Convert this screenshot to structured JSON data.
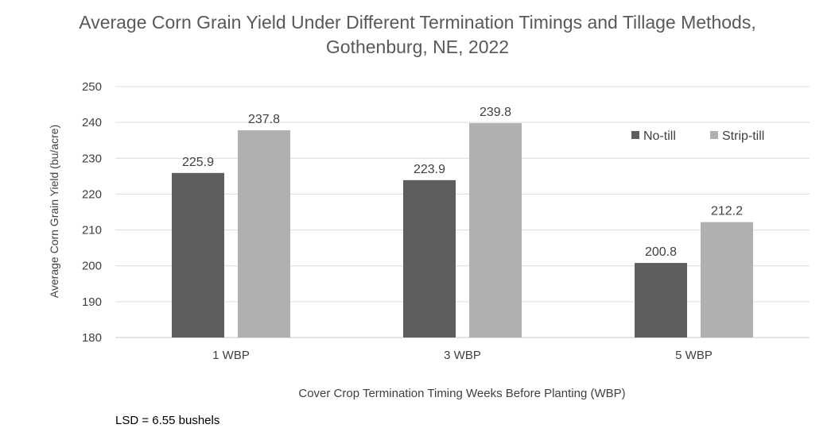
{
  "chart_data": {
    "type": "bar",
    "title_lines": [
      "Average Corn Grain Yield Under Different Termination Timings and Tillage Methods,",
      "Gothenburg, NE, 2022"
    ],
    "xlabel": "Cover Crop Termination Timing Weeks Before Planting (WBP)",
    "ylabel": "Average Corn Grain Yield (bu/acre)",
    "ylim": [
      180,
      250
    ],
    "yticks": [
      180,
      190,
      200,
      210,
      220,
      230,
      240,
      250
    ],
    "categories": [
      "1 WBP",
      "3 WBP",
      "5 WBP"
    ],
    "series": [
      {
        "name": "No-till",
        "color": "#5e5e5e",
        "values": [
          225.9,
          223.9,
          200.8
        ]
      },
      {
        "name": "Strip-till",
        "color": "#b0b0b0",
        "values": [
          237.8,
          239.8,
          212.2
        ]
      }
    ],
    "grid": true,
    "legend_position": "top-right",
    "footnote": "LSD = 6.55 bushels"
  }
}
